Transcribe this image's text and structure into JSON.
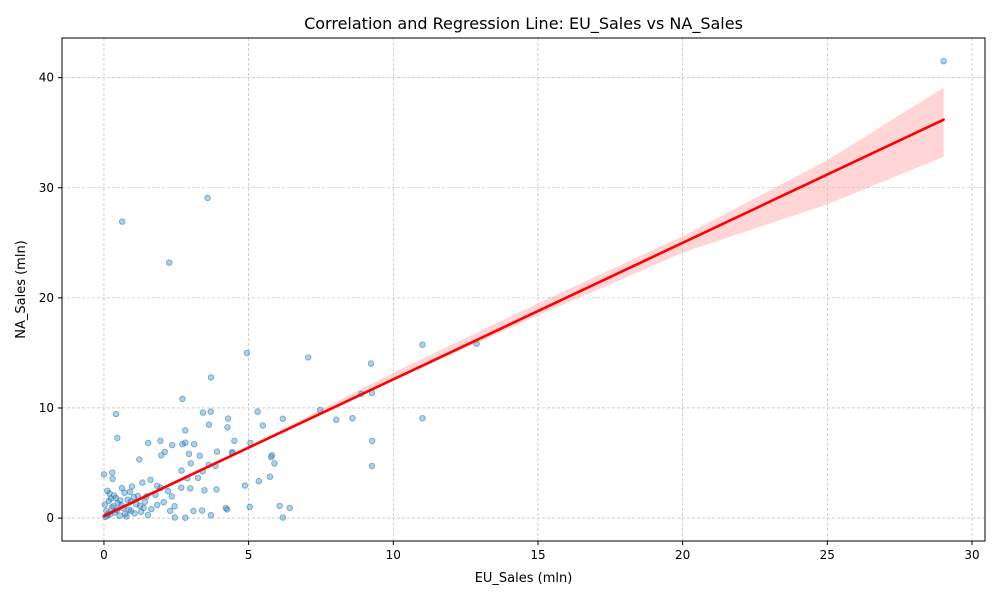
{
  "chart_data": {
    "type": "scatter",
    "title": "Correlation and Regression Line: EU_Sales vs NA_Sales",
    "xlabel": "EU_Sales (mln)",
    "ylabel": "NA_Sales (mln)",
    "xlim": [
      -1.45,
      30.45
    ],
    "ylim": [
      -2.08,
      43.6
    ],
    "xticks": [
      0,
      5,
      10,
      15,
      20,
      25,
      30
    ],
    "yticks": [
      0,
      10,
      20,
      30,
      40
    ],
    "grid": true,
    "colors": {
      "points": "#1f77b4",
      "regression": "#ff0000",
      "band": "#ffb3b3"
    },
    "regression": {
      "slope": 1.24,
      "intercept": 0.2,
      "x": [
        0,
        29.02
      ]
    },
    "confidence_band": {
      "x": [
        0,
        5,
        10,
        15,
        20,
        25,
        29.02
      ],
      "lower": [
        0.0,
        6.3,
        12.5,
        18.4,
        24.1,
        28.5,
        32.8
      ],
      "upper": [
        0.4,
        6.5,
        13.2,
        19.5,
        25.6,
        32.5,
        39.1
      ]
    },
    "series": [
      {
        "values": [
          [
            29.02,
            41.49
          ],
          [
            3.58,
            29.08
          ],
          [
            0.63,
            26.93
          ],
          [
            2.26,
            23.2
          ],
          [
            4.94,
            15.0
          ],
          [
            7.06,
            14.59
          ],
          [
            9.23,
            14.03
          ],
          [
            11.01,
            15.75
          ],
          [
            12.88,
            15.85
          ],
          [
            9.26,
            11.38
          ],
          [
            8.89,
            11.27
          ],
          [
            7.47,
            9.81
          ],
          [
            3.7,
            12.78
          ],
          [
            2.71,
            10.83
          ],
          [
            8.03,
            8.94
          ],
          [
            8.59,
            9.07
          ],
          [
            11.01,
            9.07
          ],
          [
            9.27,
            7.01
          ],
          [
            9.26,
            4.74
          ],
          [
            5.31,
            9.67
          ],
          [
            6.18,
            9.03
          ],
          [
            3.42,
            9.58
          ],
          [
            3.69,
            9.67
          ],
          [
            0.42,
            9.44
          ],
          [
            4.29,
            9.04
          ],
          [
            5.49,
            8.41
          ],
          [
            4.27,
            8.25
          ],
          [
            3.63,
            8.49
          ],
          [
            2.81,
            7.97
          ],
          [
            1.95,
            7.02
          ],
          [
            0.46,
            7.28
          ],
          [
            1.53,
            6.82
          ],
          [
            2.71,
            6.71
          ],
          [
            2.36,
            6.63
          ],
          [
            3.12,
            6.71
          ],
          [
            4.51,
            7.01
          ],
          [
            5.06,
            6.82
          ],
          [
            4.44,
            5.98
          ],
          [
            4.43,
            5.91
          ],
          [
            5.8,
            5.71
          ],
          [
            5.78,
            5.54
          ],
          [
            5.89,
            4.97
          ],
          [
            3.31,
            5.67
          ],
          [
            3.91,
            6.04
          ],
          [
            2.81,
            6.85
          ],
          [
            2.1,
            6.01
          ],
          [
            1.98,
            5.69
          ],
          [
            2.94,
            5.84
          ],
          [
            3.0,
            4.98
          ],
          [
            3.85,
            4.75
          ],
          [
            3.62,
            4.84
          ],
          [
            5.35,
            3.36
          ],
          [
            5.74,
            3.76
          ],
          [
            4.87,
            2.96
          ],
          [
            3.25,
            3.66
          ],
          [
            3.41,
            4.25
          ],
          [
            1.22,
            5.32
          ],
          [
            0.29,
            4.12
          ],
          [
            0.0,
            3.97
          ],
          [
            0.3,
            3.56
          ],
          [
            2.68,
            4.31
          ],
          [
            2.88,
            3.62
          ],
          [
            3.89,
            2.6
          ],
          [
            2.67,
            2.76
          ],
          [
            2.98,
            2.71
          ],
          [
            3.47,
            2.52
          ],
          [
            2.34,
            1.98
          ],
          [
            1.84,
            1.21
          ],
          [
            4.21,
            0.9
          ],
          [
            4.26,
            0.79
          ],
          [
            5.04,
            1.02
          ],
          [
            6.07,
            1.11
          ],
          [
            6.42,
            0.93
          ],
          [
            6.18,
            0.05
          ],
          [
            3.7,
            0.26
          ],
          [
            2.81,
            0.04
          ],
          [
            2.45,
            0.05
          ],
          [
            3.39,
            0.69
          ],
          [
            3.09,
            0.64
          ],
          [
            2.29,
            0.66
          ],
          [
            0.12,
            2.48
          ],
          [
            0.41,
            1.83
          ],
          [
            0.93,
            1.52
          ],
          [
            1.25,
            1.12
          ],
          [
            0.66,
            0.91
          ],
          [
            0.38,
            0.52
          ],
          [
            0.22,
            0.33
          ],
          [
            0.05,
            0.11
          ],
          [
            0.86,
            0.76
          ],
          [
            1.41,
            1.48
          ],
          [
            1.78,
            2.11
          ],
          [
            1.96,
            2.75
          ],
          [
            0.71,
            2.31
          ],
          [
            0.54,
            0.22
          ],
          [
            0.17,
            1.57
          ],
          [
            1.06,
            0.44
          ],
          [
            1.52,
            0.28
          ],
          [
            0.97,
            2.87
          ],
          [
            1.33,
            3.22
          ],
          [
            0.27,
            0.95
          ],
          [
            0.08,
            0.64
          ],
          [
            0.6,
            1.18
          ],
          [
            1.17,
            2.01
          ],
          [
            0.82,
            1.67
          ],
          [
            2.06,
            1.44
          ],
          [
            1.64,
            0.82
          ],
          [
            0.48,
            1.35
          ],
          [
            0.35,
            2.05
          ],
          [
            0.15,
            0.41
          ],
          [
            0.73,
            0.37
          ],
          [
            1.12,
            1.26
          ],
          [
            0.93,
            0.64
          ],
          [
            2.21,
            2.46
          ],
          [
            1.47,
            1.98
          ],
          [
            0.62,
            2.72
          ],
          [
            0.03,
            1.23
          ],
          [
            0.24,
            1.79
          ],
          [
            0.45,
            0.74
          ],
          [
            1.84,
            2.93
          ],
          [
            1.03,
            1.91
          ],
          [
            0.78,
            0.15
          ],
          [
            1.28,
            0.57
          ],
          [
            0.19,
            2.23
          ],
          [
            0.56,
            1.61
          ],
          [
            2.44,
            1.08
          ],
          [
            1.61,
            3.48
          ],
          [
            0.9,
            2.38
          ],
          [
            0.11,
            0.23
          ],
          [
            0.33,
            1.07
          ],
          [
            1.37,
            0.93
          ]
        ]
      }
    ]
  }
}
